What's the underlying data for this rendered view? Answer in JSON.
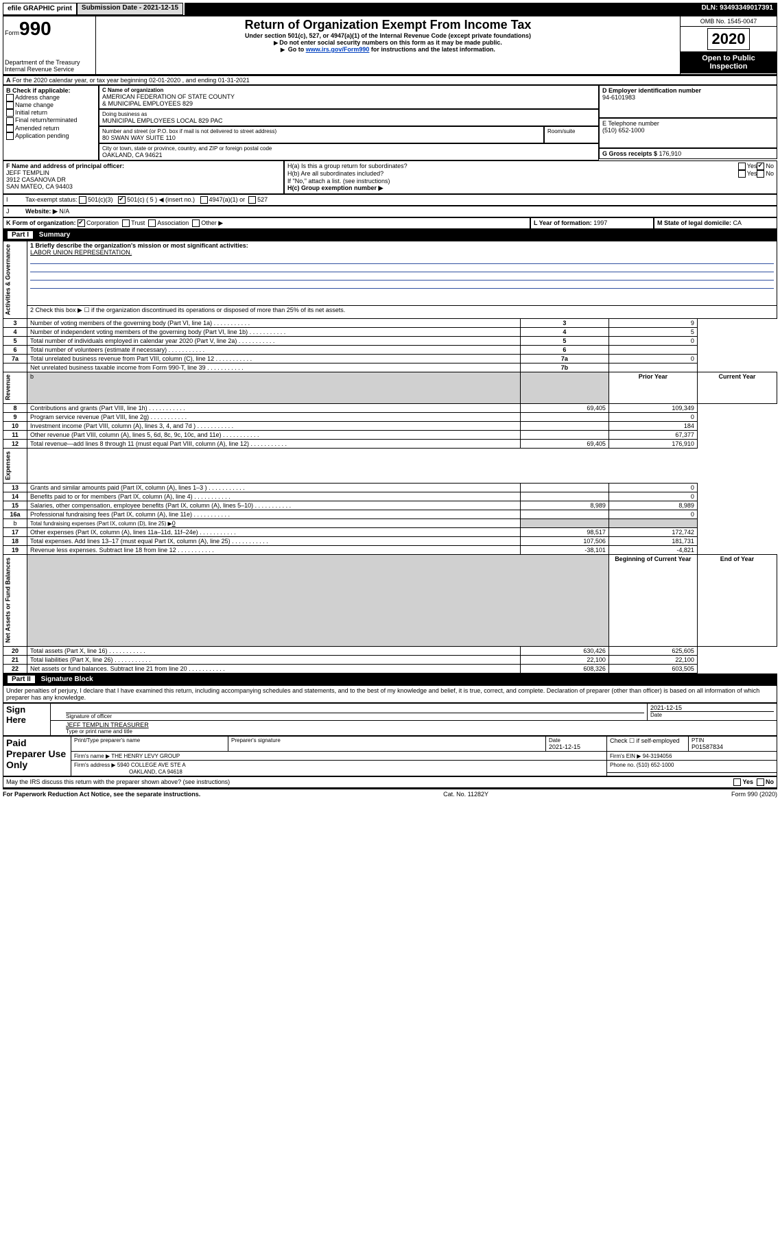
{
  "top_bar": {
    "efile": "efile GRAPHIC print",
    "submission_lbl": "Submission Date - ",
    "submission_date": "2021-12-15",
    "dln_lbl": "DLN: ",
    "dln": "93493349017391"
  },
  "hdr": {
    "form_word": "Form",
    "form_no": "990",
    "dept": "Department of the Treasury",
    "irs": "Internal Revenue Service",
    "title": "Return of Organization Exempt From Income Tax",
    "subtitle": "Under section 501(c), 527, or 4947(a)(1) of the Internal Revenue Code (except private foundations)",
    "note1": "Do not enter social security numbers on this form as it may be made public.",
    "note2_pre": "Go to ",
    "note2_link": "www.irs.gov/Form990",
    "note2_post": " for instructions and the latest information.",
    "omb": "OMB No. 1545-0047",
    "year": "2020",
    "open": "Open to Public Inspection"
  },
  "section_a": {
    "line": "For the 2020 calendar year, or tax year beginning 02-01-2020   , and ending 01-31-2021"
  },
  "box_b": {
    "hdr": "B Check if applicable:",
    "items": [
      "Address change",
      "Name change",
      "Initial return",
      "Final return/terminated",
      "Amended return",
      "Application pending"
    ]
  },
  "box_c": {
    "lbl": "C Name of organization",
    "name1": "AMERICAN FEDERATION OF STATE COUNTY",
    "name2": "& MUNICIPAL EMPLOYEES 829",
    "dba_lbl": "Doing business as",
    "dba": "MUNICIPAL EMPLOYEES LOCAL 829 PAC",
    "addr_lbl": "Number and street (or P.O. box if mail is not delivered to street address)",
    "room_lbl": "Room/suite",
    "addr": "80 SWAN WAY SUITE 110",
    "city_lbl": "City or town, state or province, country, and ZIP or foreign postal code",
    "city": "OAKLAND, CA  94621"
  },
  "box_d": {
    "lbl": "D Employer identification number",
    "val": "94-6101983"
  },
  "box_e": {
    "lbl": "E Telephone number",
    "val": "(510) 652-1000"
  },
  "box_g": {
    "lbl": "G Gross receipts $ ",
    "val": "176,910"
  },
  "box_f": {
    "lbl": "F  Name and address of principal officer:",
    "l1": "JEFF TEMPLIN",
    "l2": "3912 CASANOVA DR",
    "l3": "SAN MATEO, CA  94403"
  },
  "box_h": {
    "ha": "H(a)  Is this a group return for subordinates?",
    "hb": "H(b)  Are all subordinates included?",
    "hnote": "If \"No,\" attach a list. (see instructions)",
    "hc": "H(c)  Group exemption number ▶",
    "yes": "Yes",
    "no": "No"
  },
  "box_i": {
    "lbl": "Tax-exempt status:",
    "o1": "501(c)(3)",
    "o2": "501(c) ( 5 ) ◀ (insert no.)",
    "o3": "4947(a)(1) or",
    "o4": "527"
  },
  "box_j": {
    "lbl": "Website: ▶",
    "val": "N/A"
  },
  "box_k": {
    "lbl": "K Form of organization:",
    "o1": "Corporation",
    "o2": "Trust",
    "o3": "Association",
    "o4": "Other ▶"
  },
  "box_l": {
    "lbl": "L Year of formation: ",
    "val": "1997"
  },
  "box_m": {
    "lbl": "M State of legal domicile: ",
    "val": "CA"
  },
  "part1": {
    "hdr_part": "Part I",
    "hdr_title": "Summary",
    "l1_lbl": "1  Briefly describe the organization's mission or most significant activities:",
    "l1_val": "LABOR UNION REPRESENTATION.",
    "l2": "2   Check this box ▶ ☐  if the organization discontinued its operations or disposed of more than 25% of its net assets.",
    "side_ag": "Activities & Governance",
    "side_rev": "Revenue",
    "side_exp": "Expenses",
    "side_net": "Net Assets or Fund Balances",
    "rows_ag": [
      {
        "n": "3",
        "t": "Number of voting members of the governing body (Part VI, line 1a)",
        "b": "3",
        "v": "9"
      },
      {
        "n": "4",
        "t": "Number of independent voting members of the governing body (Part VI, line 1b)",
        "b": "4",
        "v": "5"
      },
      {
        "n": "5",
        "t": "Total number of individuals employed in calendar year 2020 (Part V, line 2a)",
        "b": "5",
        "v": "0"
      },
      {
        "n": "6",
        "t": "Total number of volunteers (estimate if necessary)",
        "b": "6",
        "v": ""
      },
      {
        "n": "7a",
        "t": "Total unrelated business revenue from Part VIII, column (C), line 12",
        "b": "7a",
        "v": "0"
      },
      {
        "n": "",
        "t": "Net unrelated business taxable income from Form 990-T, line 39",
        "b": "7b",
        "v": ""
      }
    ],
    "col_prior": "Prior Year",
    "col_curr": "Current Year",
    "blank_b": "b",
    "rows_rev": [
      {
        "n": "8",
        "t": "Contributions and grants (Part VIII, line 1h)",
        "p": "69,405",
        "c": "109,349"
      },
      {
        "n": "9",
        "t": "Program service revenue (Part VIII, line 2g)",
        "p": "",
        "c": "0"
      },
      {
        "n": "10",
        "t": "Investment income (Part VIII, column (A), lines 3, 4, and 7d )",
        "p": "",
        "c": "184"
      },
      {
        "n": "11",
        "t": "Other revenue (Part VIII, column (A), lines 5, 6d, 8c, 9c, 10c, and 11e)",
        "p": "",
        "c": "67,377"
      },
      {
        "n": "12",
        "t": "Total revenue—add lines 8 through 11 (must equal Part VIII, column (A), line 12)",
        "p": "69,405",
        "c": "176,910"
      }
    ],
    "rows_exp": [
      {
        "n": "13",
        "t": "Grants and similar amounts paid (Part IX, column (A), lines 1–3 )",
        "p": "",
        "c": "0"
      },
      {
        "n": "14",
        "t": "Benefits paid to or for members (Part IX, column (A), line 4)",
        "p": "",
        "c": "0"
      },
      {
        "n": "15",
        "t": "Salaries, other compensation, employee benefits (Part IX, column (A), lines 5–10)",
        "p": "8,989",
        "c": "8,989"
      },
      {
        "n": "16a",
        "t": "Professional fundraising fees (Part IX, column (A), line 11e)",
        "p": "",
        "c": "0"
      }
    ],
    "row_16b": {
      "n": "b",
      "t": "Total fundraising expenses (Part IX, column (D), line 25) ▶",
      "v": "0"
    },
    "rows_exp2": [
      {
        "n": "17",
        "t": "Other expenses (Part IX, column (A), lines 11a–11d, 11f–24e)",
        "p": "98,517",
        "c": "172,742"
      },
      {
        "n": "18",
        "t": "Total expenses. Add lines 13–17 (must equal Part IX, column (A), line 25)",
        "p": "107,506",
        "c": "181,731"
      },
      {
        "n": "19",
        "t": "Revenue less expenses. Subtract line 18 from line 12",
        "p": "-38,101",
        "c": "-4,821"
      }
    ],
    "col_boy": "Beginning of Current Year",
    "col_eoy": "End of Year",
    "rows_net": [
      {
        "n": "20",
        "t": "Total assets (Part X, line 16)",
        "p": "630,426",
        "c": "625,605"
      },
      {
        "n": "21",
        "t": "Total liabilities (Part X, line 26)",
        "p": "22,100",
        "c": "22,100"
      },
      {
        "n": "22",
        "t": "Net assets or fund balances. Subtract line 21 from line 20",
        "p": "608,326",
        "c": "603,505"
      }
    ]
  },
  "part2": {
    "hdr_part": "Part II",
    "hdr_title": "Signature Block",
    "penalty": "Under penalties of perjury, I declare that I have examined this return, including accompanying schedules and statements, and to the best of my knowledge and belief, it is true, correct, and complete. Declaration of preparer (other than officer) is based on all information of which preparer has any knowledge.",
    "sign_here": "Sign Here",
    "sig_off_lbl": "Signature of officer",
    "date_lbl": "Date",
    "sig_date": "2021-12-15",
    "sig_name": "JEFF TEMPLIN  TREASURER",
    "sig_type_lbl": "Type or print name and title",
    "paid": "Paid Preparer Use Only",
    "prep_name_lbl": "Print/Type preparer's name",
    "prep_sig_lbl": "Preparer's signature",
    "prep_date_lbl": "Date",
    "prep_date": "2021-12-15",
    "prep_chk": "Check ☐  if self-employed",
    "ptin_lbl": "PTIN",
    "ptin": "P01587834",
    "firm_name_lbl": "Firm's name    ▶ ",
    "firm_name": "THE HENRY LEVY GROUP",
    "firm_ein_lbl": "Firm's EIN ▶ ",
    "firm_ein": "94-3194056",
    "firm_addr_lbl": "Firm's address ▶ ",
    "firm_addr1": "5940 COLLEGE AVE STE A",
    "firm_addr2": "OAKLAND, CA  94618",
    "phone_lbl": "Phone no. ",
    "phone": "(510) 652-1000",
    "discuss": "May the IRS discuss this return with the preparer shown above? (see instructions)"
  },
  "footer": {
    "left": "For Paperwork Reduction Act Notice, see the separate instructions.",
    "mid": "Cat. No. 11282Y",
    "right": "Form 990 (2020)"
  }
}
